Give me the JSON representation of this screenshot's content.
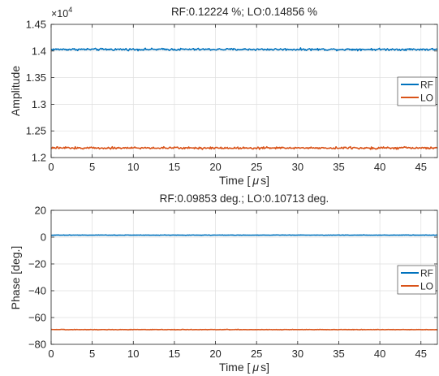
{
  "chart_data": [
    {
      "type": "line",
      "title": "RF:0.12224 %; LO:0.14856 %",
      "xlabel": "Time [μs]",
      "xlabel_main": "Time [",
      "xlabel_unit": "μ",
      "xlabel_tail": "s]",
      "ylabel": "Amplitude",
      "exponent_label": "×10",
      "exponent_power": "4",
      "xlim": [
        0,
        47
      ],
      "ylim": [
        1.2,
        1.45
      ],
      "xticks": [
        0,
        5,
        10,
        15,
        20,
        25,
        30,
        35,
        40,
        45
      ],
      "yticks": [
        1.2,
        1.25,
        1.3,
        1.35,
        1.4,
        1.45
      ],
      "ytick_labels": [
        "1.2",
        "1.25",
        "1.3",
        "1.35",
        "1.4",
        "1.45"
      ],
      "grid": true,
      "legend_position": "center-right",
      "series": [
        {
          "name": "RF",
          "color": "#0072BD",
          "mean": 1.403,
          "noise": 0.0012
        },
        {
          "name": "LO",
          "color": "#D95319",
          "mean": 1.218,
          "noise": 0.0012
        }
      ]
    },
    {
      "type": "line",
      "title": "RF:0.09853 deg.; LO:0.10713 deg.",
      "xlabel": "Time [μs]",
      "xlabel_main": "Time [",
      "xlabel_unit": "μ",
      "xlabel_tail": "s]",
      "ylabel": "Phase [deg.]",
      "xlim": [
        0,
        47
      ],
      "ylim": [
        -80,
        20
      ],
      "xticks": [
        0,
        5,
        10,
        15,
        20,
        25,
        30,
        35,
        40,
        45
      ],
      "yticks": [
        -80,
        -60,
        -40,
        -20,
        0,
        20
      ],
      "ytick_labels": [
        "−80",
        "−60",
        "−40",
        "−20",
        "0",
        "20"
      ],
      "grid": true,
      "legend_position": "center-right",
      "series": [
        {
          "name": "RF",
          "color": "#0072BD",
          "mean": 1.5,
          "noise": 0.1
        },
        {
          "name": "LO",
          "color": "#D95319",
          "mean": -69.0,
          "noise": 0.11
        }
      ]
    }
  ]
}
